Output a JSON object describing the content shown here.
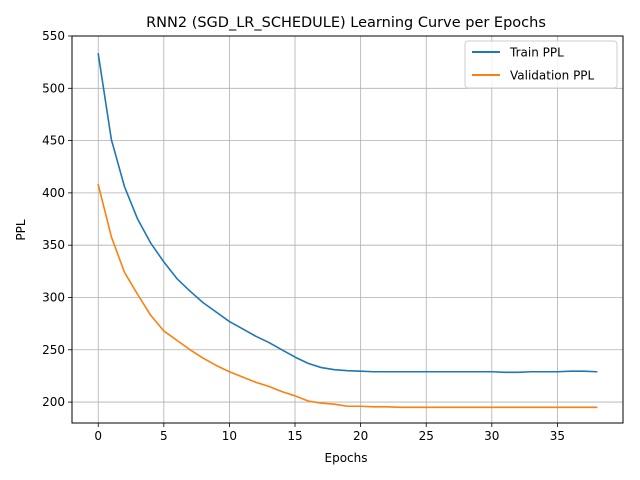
{
  "chart_data": {
    "type": "line",
    "title": "RNN2 (SGD_LR_SCHEDULE) Learning Curve per Epochs",
    "xlabel": "Epochs",
    "ylabel": "PPL",
    "xlim": [
      -2,
      40
    ],
    "ylim": [
      180,
      550
    ],
    "x_ticks": [
      0,
      5,
      10,
      15,
      20,
      25,
      30,
      35
    ],
    "y_ticks": [
      200,
      250,
      300,
      350,
      400,
      450,
      500,
      550
    ],
    "grid": true,
    "legend_position": "top-right",
    "x": [
      0,
      1,
      2,
      3,
      4,
      5,
      6,
      7,
      8,
      9,
      10,
      11,
      12,
      13,
      14,
      15,
      16,
      17,
      18,
      19,
      20,
      21,
      22,
      23,
      24,
      25,
      26,
      27,
      28,
      29,
      30,
      31,
      32,
      33,
      34,
      35,
      36,
      37,
      38
    ],
    "series": [
      {
        "name": "Train PPL",
        "color": "#1f77b4",
        "values": [
          533,
          451,
          406,
          375,
          352,
          334,
          318,
          306,
          295,
          286,
          277,
          270,
          263,
          257,
          250,
          243,
          237,
          233,
          231,
          230,
          229.5,
          229,
          229,
          229,
          229,
          229,
          229,
          229,
          229,
          229,
          229,
          228.5,
          228.5,
          229,
          229,
          229,
          229.5,
          229.5,
          229
        ]
      },
      {
        "name": "Validation PPL",
        "color": "#ff7f0e",
        "values": [
          408,
          358,
          324,
          303,
          283,
          268,
          259,
          250,
          242,
          235,
          229,
          224,
          219,
          215,
          210,
          206,
          201,
          199,
          198,
          196,
          196,
          195.5,
          195.5,
          195,
          195,
          195,
          195,
          195,
          195,
          195,
          195,
          195,
          195,
          195,
          195,
          195,
          195,
          195,
          195
        ]
      }
    ]
  }
}
